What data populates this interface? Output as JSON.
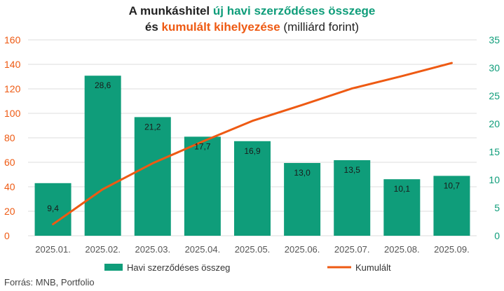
{
  "title": {
    "line1_part1": "A munkáshitel ",
    "line1_green": "új havi szerződéses összege",
    "line2_part1": "és ",
    "line2_orange": "kumulált kihelyezése",
    "line2_part2": " (milliárd forint)"
  },
  "source": "Forrás: MNB, Portfolio",
  "colors": {
    "bar": "#0f9d7a",
    "line": "#ee5a13",
    "left_axis": "#ee5a13",
    "right_axis": "#0f9d7a",
    "grid": "#dddddd"
  },
  "chart_data": {
    "type": "bar",
    "categories": [
      "2025.01.",
      "2025.02.",
      "2025.03.",
      "2025.04.",
      "2025.05.",
      "2025.06.",
      "2025.07.",
      "2025.08.",
      "2025.09."
    ],
    "series": [
      {
        "name": "Havi szerződéses összeg",
        "type": "bar",
        "axis": "right",
        "values": [
          9.4,
          28.6,
          21.2,
          17.7,
          16.9,
          13.0,
          13.5,
          10.1,
          10.7
        ],
        "labels": [
          "9,4",
          "28,6",
          "21,2",
          "17,7",
          "16,9",
          "13,0",
          "13,5",
          "10,1",
          "10,7"
        ]
      },
      {
        "name": "Kumulált",
        "type": "line",
        "axis": "left",
        "values": [
          9.4,
          38.0,
          59.2,
          76.9,
          93.8,
          106.8,
          120.3,
          130.4,
          141.1
        ]
      }
    ],
    "y_left": {
      "min": 0,
      "max": 160,
      "ticks": [
        "0",
        "20",
        "40",
        "60",
        "80",
        "100",
        "120",
        "140",
        "160"
      ]
    },
    "y_right": {
      "min": 0,
      "max": 35,
      "ticks": [
        "0",
        "5",
        "10",
        "15",
        "20",
        "25",
        "30",
        "35"
      ]
    },
    "grid": true,
    "legend_position": "bottom"
  }
}
